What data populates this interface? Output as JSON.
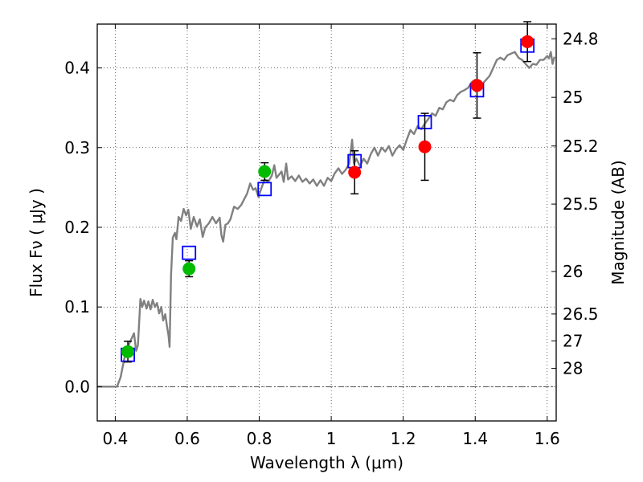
{
  "chart_data": {
    "type": "scatter",
    "xlabel": "Wavelength  λ (μm)",
    "ylabel": "Flux  Fν  ( μJy )",
    "ylabel_right": "Magnitude (AB)",
    "xlim": [
      0.35,
      1.625
    ],
    "ylim": [
      -0.043,
      0.455
    ],
    "grid": true,
    "legend": "none",
    "x_ticks": [
      {
        "v": 0.4,
        "label": "0.4"
      },
      {
        "v": 0.6,
        "label": "0.6"
      },
      {
        "v": 0.8,
        "label": "0.8"
      },
      {
        "v": 1.0,
        "label": "1"
      },
      {
        "v": 1.2,
        "label": "1.2"
      },
      {
        "v": 1.4,
        "label": "1.4"
      },
      {
        "v": 1.6,
        "label": "1.6"
      }
    ],
    "y_ticks": [
      {
        "v": 0.0,
        "label": "0.0"
      },
      {
        "v": 0.1,
        "label": "0.1"
      },
      {
        "v": 0.2,
        "label": "0.2"
      },
      {
        "v": 0.3,
        "label": "0.3"
      },
      {
        "v": 0.4,
        "label": "0.4"
      }
    ],
    "right_ticks": [
      {
        "mag": 24.8,
        "label": "24.8"
      },
      {
        "mag": 25.0,
        "label": "25"
      },
      {
        "mag": 25.2,
        "label": "25.2"
      },
      {
        "mag": 25.5,
        "label": "25.5"
      },
      {
        "mag": 26.0,
        "label": "26"
      },
      {
        "mag": 26.5,
        "label": "26.5"
      },
      {
        "mag": 27.0,
        "label": "27"
      },
      {
        "mag": 28.0,
        "label": "28"
      }
    ],
    "series": [
      {
        "kind": "line",
        "color": "#808080",
        "points": [
          [
            0.35,
            0.0
          ],
          [
            0.405,
            0.0
          ],
          [
            0.415,
            0.012
          ],
          [
            0.425,
            0.035
          ],
          [
            0.435,
            0.05
          ],
          [
            0.445,
            0.06
          ],
          [
            0.452,
            0.067
          ],
          [
            0.458,
            0.045
          ],
          [
            0.463,
            0.052
          ],
          [
            0.47,
            0.11
          ],
          [
            0.475,
            0.1
          ],
          [
            0.48,
            0.108
          ],
          [
            0.487,
            0.098
          ],
          [
            0.492,
            0.107
          ],
          [
            0.498,
            0.097
          ],
          [
            0.504,
            0.109
          ],
          [
            0.51,
            0.1
          ],
          [
            0.516,
            0.105
          ],
          [
            0.522,
            0.092
          ],
          [
            0.528,
            0.1
          ],
          [
            0.533,
            0.083
          ],
          [
            0.539,
            0.091
          ],
          [
            0.544,
            0.075
          ],
          [
            0.548,
            0.064
          ],
          [
            0.551,
            0.05
          ],
          [
            0.555,
            0.14
          ],
          [
            0.56,
            0.187
          ],
          [
            0.566,
            0.193
          ],
          [
            0.57,
            0.185
          ],
          [
            0.576,
            0.213
          ],
          [
            0.583,
            0.208
          ],
          [
            0.59,
            0.223
          ],
          [
            0.597,
            0.215
          ],
          [
            0.603,
            0.222
          ],
          [
            0.61,
            0.198
          ],
          [
            0.618,
            0.213
          ],
          [
            0.627,
            0.201
          ],
          [
            0.635,
            0.21
          ],
          [
            0.643,
            0.188
          ],
          [
            0.65,
            0.2
          ],
          [
            0.66,
            0.205
          ],
          [
            0.67,
            0.213
          ],
          [
            0.68,
            0.205
          ],
          [
            0.69,
            0.212
          ],
          [
            0.695,
            0.19
          ],
          [
            0.7,
            0.182
          ],
          [
            0.706,
            0.203
          ],
          [
            0.713,
            0.205
          ],
          [
            0.72,
            0.21
          ],
          [
            0.73,
            0.226
          ],
          [
            0.74,
            0.223
          ],
          [
            0.75,
            0.228
          ],
          [
            0.758,
            0.235
          ],
          [
            0.766,
            0.242
          ],
          [
            0.775,
            0.255
          ],
          [
            0.783,
            0.247
          ],
          [
            0.79,
            0.249
          ],
          [
            0.798,
            0.238
          ],
          [
            0.806,
            0.249
          ],
          [
            0.815,
            0.26
          ],
          [
            0.825,
            0.257
          ],
          [
            0.835,
            0.265
          ],
          [
            0.842,
            0.278
          ],
          [
            0.848,
            0.262
          ],
          [
            0.855,
            0.266
          ],
          [
            0.862,
            0.27
          ],
          [
            0.868,
            0.257
          ],
          [
            0.875,
            0.28
          ],
          [
            0.88,
            0.26
          ],
          [
            0.89,
            0.264
          ],
          [
            0.9,
            0.258
          ],
          [
            0.91,
            0.265
          ],
          [
            0.92,
            0.257
          ],
          [
            0.93,
            0.261
          ],
          [
            0.94,
            0.255
          ],
          [
            0.95,
            0.26
          ],
          [
            0.96,
            0.252
          ],
          [
            0.97,
            0.259
          ],
          [
            0.98,
            0.252
          ],
          [
            0.99,
            0.262
          ],
          [
            1.0,
            0.258
          ],
          [
            1.01,
            0.268
          ],
          [
            1.02,
            0.274
          ],
          [
            1.03,
            0.267
          ],
          [
            1.04,
            0.272
          ],
          [
            1.05,
            0.28
          ],
          [
            1.058,
            0.31
          ],
          [
            1.063,
            0.28
          ],
          [
            1.07,
            0.286
          ],
          [
            1.08,
            0.277
          ],
          [
            1.09,
            0.286
          ],
          [
            1.1,
            0.28
          ],
          [
            1.11,
            0.292
          ],
          [
            1.12,
            0.3
          ],
          [
            1.13,
            0.29
          ],
          [
            1.14,
            0.3
          ],
          [
            1.15,
            0.295
          ],
          [
            1.16,
            0.302
          ],
          [
            1.17,
            0.29
          ],
          [
            1.18,
            0.298
          ],
          [
            1.19,
            0.303
          ],
          [
            1.2,
            0.297
          ],
          [
            1.21,
            0.31
          ],
          [
            1.22,
            0.322
          ],
          [
            1.23,
            0.317
          ],
          [
            1.24,
            0.327
          ],
          [
            1.25,
            0.323
          ],
          [
            1.26,
            0.33
          ],
          [
            1.27,
            0.336
          ],
          [
            1.28,
            0.343
          ],
          [
            1.29,
            0.34
          ],
          [
            1.3,
            0.35
          ],
          [
            1.31,
            0.348
          ],
          [
            1.32,
            0.357
          ],
          [
            1.33,
            0.36
          ],
          [
            1.34,
            0.358
          ],
          [
            1.35,
            0.366
          ],
          [
            1.36,
            0.37
          ],
          [
            1.37,
            0.372
          ],
          [
            1.38,
            0.375
          ],
          [
            1.39,
            0.382
          ],
          [
            1.4,
            0.385
          ],
          [
            1.41,
            0.378
          ],
          [
            1.42,
            0.38
          ],
          [
            1.43,
            0.385
          ],
          [
            1.44,
            0.39
          ],
          [
            1.45,
            0.4
          ],
          [
            1.46,
            0.41
          ],
          [
            1.47,
            0.413
          ],
          [
            1.48,
            0.41
          ],
          [
            1.49,
            0.416
          ],
          [
            1.5,
            0.418
          ],
          [
            1.51,
            0.42
          ],
          [
            1.52,
            0.413
          ],
          [
            1.53,
            0.41
          ],
          [
            1.54,
            0.405
          ],
          [
            1.55,
            0.4
          ],
          [
            1.56,
            0.405
          ],
          [
            1.57,
            0.404
          ],
          [
            1.58,
            0.41
          ],
          [
            1.59,
            0.41
          ],
          [
            1.6,
            0.415
          ],
          [
            1.605,
            0.412
          ],
          [
            1.61,
            0.42
          ],
          [
            1.615,
            0.405
          ],
          [
            1.62,
            0.414
          ]
        ]
      },
      {
        "kind": "square",
        "color": "#0000ff",
        "points": [
          [
            0.435,
            0.04
          ],
          [
            0.605,
            0.168
          ],
          [
            0.815,
            0.248
          ],
          [
            1.065,
            0.283
          ],
          [
            1.26,
            0.332
          ],
          [
            1.405,
            0.372
          ],
          [
            1.545,
            0.428
          ]
        ]
      },
      {
        "kind": "circle",
        "color": "#00bb00",
        "points": [
          {
            "x": 0.435,
            "y": 0.044,
            "err": 0.013
          },
          {
            "x": 0.605,
            "y": 0.148,
            "err": 0.01
          },
          {
            "x": 0.815,
            "y": 0.27,
            "err": 0.011
          }
        ]
      },
      {
        "kind": "circle",
        "color": "#ff0000",
        "points": [
          {
            "x": 1.065,
            "y": 0.269,
            "err": 0.027
          },
          {
            "x": 1.26,
            "y": 0.301,
            "err": 0.042
          },
          {
            "x": 1.405,
            "y": 0.378,
            "err": 0.041
          },
          {
            "x": 1.545,
            "y": 0.433,
            "err": 0.025
          }
        ]
      }
    ]
  }
}
